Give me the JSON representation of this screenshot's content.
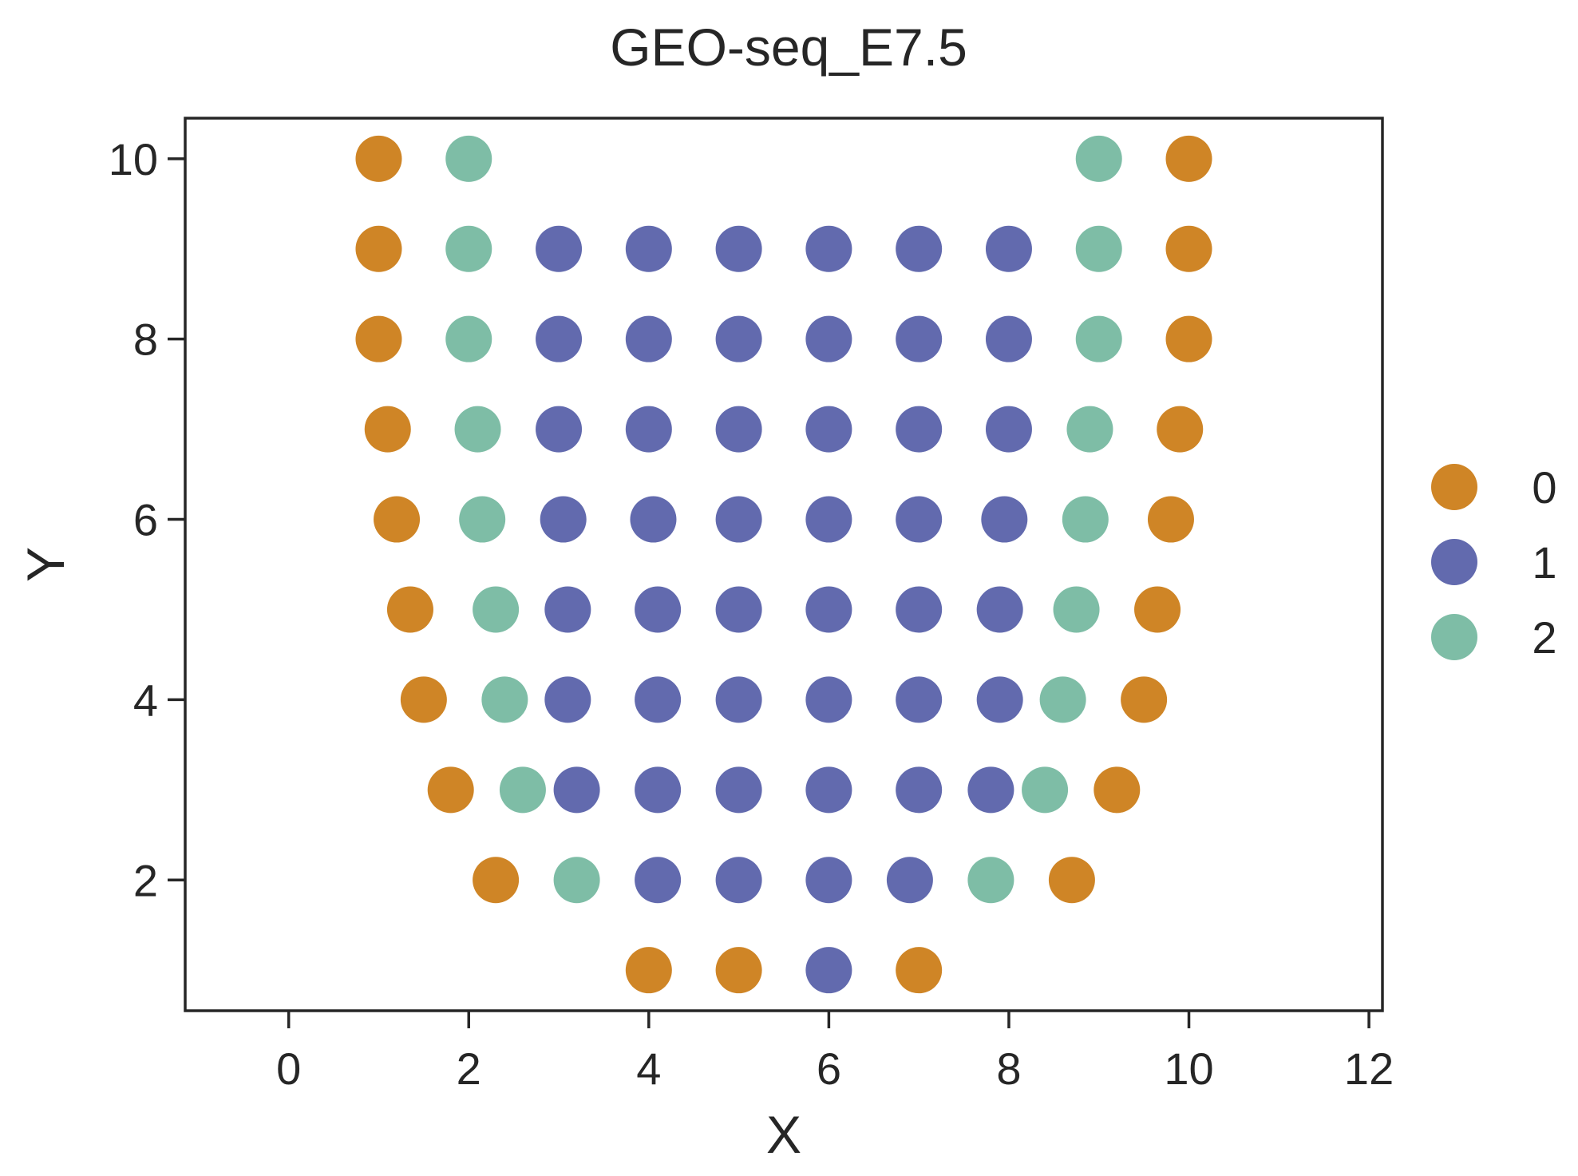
{
  "chart_data": {
    "type": "scatter",
    "title": "GEO-seq_E7.5",
    "xlabel": "X",
    "ylabel": "Y",
    "xlim": [
      -1.15,
      12.15
    ],
    "ylim": [
      0.55,
      10.45
    ],
    "xticks": [
      0,
      2,
      4,
      6,
      8,
      10,
      12
    ],
    "yticks": [
      2,
      4,
      6,
      8,
      10
    ],
    "grid": false,
    "legend_position": "right",
    "series": [
      {
        "name": "0",
        "color": "#cf8526",
        "points": [
          [
            1,
            10
          ],
          [
            10,
            10
          ],
          [
            1,
            9
          ],
          [
            10,
            9
          ],
          [
            1,
            8
          ],
          [
            10,
            8
          ],
          [
            1.1,
            7
          ],
          [
            9.9,
            7
          ],
          [
            1.2,
            6
          ],
          [
            9.8,
            6
          ],
          [
            1.35,
            5
          ],
          [
            9.65,
            5
          ],
          [
            1.5,
            4
          ],
          [
            9.5,
            4
          ],
          [
            1.8,
            3
          ],
          [
            9.2,
            3
          ],
          [
            2.3,
            2
          ],
          [
            8.7,
            2
          ],
          [
            4,
            1
          ],
          [
            5,
            1
          ],
          [
            7,
            1
          ]
        ]
      },
      {
        "name": "1",
        "color": "#626aae",
        "points": [
          [
            3,
            9
          ],
          [
            4,
            9
          ],
          [
            5,
            9
          ],
          [
            6,
            9
          ],
          [
            7,
            9
          ],
          [
            8,
            9
          ],
          [
            3,
            8
          ],
          [
            4,
            8
          ],
          [
            5,
            8
          ],
          [
            6,
            8
          ],
          [
            7,
            8
          ],
          [
            8,
            8
          ],
          [
            3,
            7
          ],
          [
            4,
            7
          ],
          [
            5,
            7
          ],
          [
            6,
            7
          ],
          [
            7,
            7
          ],
          [
            8,
            7
          ],
          [
            3.05,
            6
          ],
          [
            4.05,
            6
          ],
          [
            5,
            6
          ],
          [
            6,
            6
          ],
          [
            7,
            6
          ],
          [
            7.95,
            6
          ],
          [
            3.1,
            5
          ],
          [
            4.1,
            5
          ],
          [
            5,
            5
          ],
          [
            6,
            5
          ],
          [
            7,
            5
          ],
          [
            7.9,
            5
          ],
          [
            3.1,
            4
          ],
          [
            4.1,
            4
          ],
          [
            5,
            4
          ],
          [
            6,
            4
          ],
          [
            7,
            4
          ],
          [
            7.9,
            4
          ],
          [
            3.2,
            3
          ],
          [
            4.1,
            3
          ],
          [
            5,
            3
          ],
          [
            6,
            3
          ],
          [
            7,
            3
          ],
          [
            7.8,
            3
          ],
          [
            4.1,
            2
          ],
          [
            5,
            2
          ],
          [
            6,
            2
          ],
          [
            6.9,
            2
          ],
          [
            6,
            1
          ]
        ]
      },
      {
        "name": "2",
        "color": "#7ebda6",
        "points": [
          [
            2,
            10
          ],
          [
            9,
            10
          ],
          [
            2,
            9
          ],
          [
            9,
            9
          ],
          [
            2,
            8
          ],
          [
            9,
            8
          ],
          [
            2.1,
            7
          ],
          [
            8.9,
            7
          ],
          [
            2.15,
            6
          ],
          [
            8.85,
            6
          ],
          [
            2.3,
            5
          ],
          [
            8.75,
            5
          ],
          [
            2.4,
            4
          ],
          [
            8.6,
            4
          ],
          [
            2.6,
            3
          ],
          [
            8.4,
            3
          ],
          [
            3.2,
            2
          ],
          [
            7.8,
            2
          ]
        ]
      }
    ]
  }
}
